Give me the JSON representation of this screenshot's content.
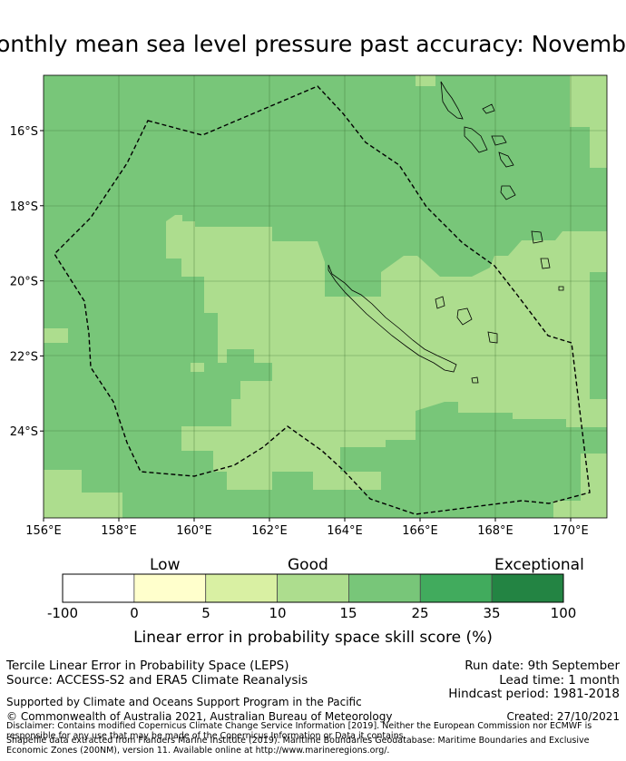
{
  "title": "Monthly mean sea level pressure past accuracy: November",
  "map": {
    "lon_range": [
      156,
      171
    ],
    "lat_range": [
      -26.2,
      -14.5
    ],
    "lon_ticks": [
      "156°E",
      "158°E",
      "160°E",
      "162°E",
      "164°E",
      "166°E",
      "168°E",
      "170°E"
    ],
    "lat_ticks": [
      "16°S",
      "18°S",
      "20°S",
      "22°S",
      "24°S"
    ],
    "colors": {
      "band_10_15": "#addd8e",
      "band_15_25": "#78c679",
      "outline": "#000000"
    }
  },
  "legend": {
    "categories": [
      "Low",
      "Good",
      "Exceptional"
    ],
    "ticks": [
      "-100",
      "0",
      "5",
      "10",
      "15",
      "25",
      "35",
      "100"
    ],
    "colors": [
      "#ffffff",
      "#ffffcc",
      "#d9f0a3",
      "#addd8e",
      "#78c679",
      "#41ab5d",
      "#238443"
    ],
    "label": "Linear error in probability space skill score (%)"
  },
  "info": {
    "product": "Tercile Linear Error in Probability Space (LEPS)",
    "source": "Source: ACCESS-S2 and ERA5 Climate Reanalysis",
    "run_date": "Run date: 9th September",
    "lead_time": "Lead time: 1 month",
    "hindcast": "Hindcast period: 1981-2018",
    "support": "Supported by Climate and Oceans Support Program in the Pacific",
    "copyright": "© Commonwealth of Australia 2021, Australian Bureau of Meteorology",
    "created": "Created: 27/10/2021",
    "disclaimer": "Disclaimer: Contains modified Copernicus Climate Change Service Information [2019]. Neither the European Commission nor ECMWF is responsible for any use that may be made of the Copernicus Information or Data it contains.",
    "shapefile": "Shapefile data extracted from Flanders Marine Institute (2019). Maritime Boundaries Geodatabase: Maritime Boundaries and Exclusive Economic Zones (200NM), version 11. Available online at http://www.marineregions.org/."
  }
}
